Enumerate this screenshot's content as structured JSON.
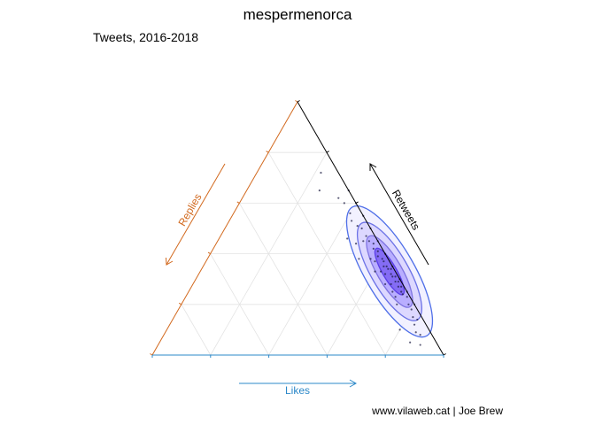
{
  "chart_data": {
    "type": "ternary-density",
    "title": "mespermenorca",
    "subtitle": "Tweets, 2016-2018",
    "caption": "www.vilaweb.cat | Joe Brew",
    "axes": {
      "likes": {
        "label": "Likes",
        "color": "#2b88c8"
      },
      "replies": {
        "label": "Replies",
        "color": "#d2691e"
      },
      "retweets": {
        "label": "Retweets",
        "color": "#000000"
      }
    },
    "grid": true,
    "grid_steps": 5,
    "composition_order": [
      "likes",
      "replies",
      "retweets"
    ],
    "density_center": [
      0.65,
      0.02,
      0.33
    ],
    "density_levels": [
      "outer",
      "middle",
      "inner",
      "core"
    ],
    "points": [
      [
        0.33,
        0.05,
        0.62
      ],
      [
        0.36,
        0.04,
        0.6
      ],
      [
        0.4,
        0.04,
        0.56
      ],
      [
        0.42,
        0.05,
        0.53
      ],
      [
        0.45,
        0.04,
        0.51
      ],
      [
        0.47,
        0.03,
        0.5
      ],
      [
        0.5,
        0.03,
        0.47
      ],
      [
        0.52,
        0.03,
        0.45
      ],
      [
        0.54,
        0.02,
        0.44
      ],
      [
        0.55,
        0.03,
        0.42
      ],
      [
        0.57,
        0.02,
        0.41
      ],
      [
        0.58,
        0.03,
        0.39
      ],
      [
        0.6,
        0.02,
        0.38
      ],
      [
        0.61,
        0.02,
        0.37
      ],
      [
        0.62,
        0.03,
        0.35
      ],
      [
        0.63,
        0.02,
        0.35
      ],
      [
        0.64,
        0.02,
        0.34
      ],
      [
        0.65,
        0.01,
        0.34
      ],
      [
        0.66,
        0.02,
        0.32
      ],
      [
        0.67,
        0.02,
        0.31
      ],
      [
        0.68,
        0.01,
        0.31
      ],
      [
        0.69,
        0.02,
        0.29
      ],
      [
        0.7,
        0.01,
        0.29
      ],
      [
        0.71,
        0.02,
        0.27
      ],
      [
        0.72,
        0.01,
        0.27
      ],
      [
        0.73,
        0.02,
        0.25
      ],
      [
        0.74,
        0.02,
        0.24
      ],
      [
        0.76,
        0.01,
        0.23
      ],
      [
        0.78,
        0.02,
        0.2
      ],
      [
        0.8,
        0.02,
        0.18
      ],
      [
        0.82,
        0.03,
        0.15
      ],
      [
        0.84,
        0.04,
        0.12
      ],
      [
        0.86,
        0.05,
        0.09
      ],
      [
        0.88,
        0.04,
        0.08
      ],
      [
        0.56,
        0.06,
        0.38
      ],
      [
        0.6,
        0.07,
        0.33
      ],
      [
        0.48,
        0.08,
        0.44
      ],
      [
        0.52,
        0.1,
        0.38
      ],
      [
        0.44,
        0.1,
        0.46
      ],
      [
        0.66,
        0.06,
        0.28
      ],
      [
        0.7,
        0.05,
        0.25
      ],
      [
        0.74,
        0.06,
        0.2
      ],
      [
        0.62,
        0.05,
        0.33
      ],
      [
        0.58,
        0.05,
        0.37
      ],
      [
        0.64,
        0.04,
        0.32
      ],
      [
        0.68,
        0.04,
        0.28
      ],
      [
        0.72,
        0.05,
        0.23
      ],
      [
        0.5,
        0.05,
        0.45
      ],
      [
        0.35,
        0.0,
        0.65
      ],
      [
        0.4,
        0.0,
        0.6
      ],
      [
        0.45,
        0.0,
        0.55
      ],
      [
        0.5,
        0.0,
        0.5
      ],
      [
        0.55,
        0.0,
        0.45
      ],
      [
        0.6,
        0.0,
        0.4
      ],
      [
        0.65,
        0.0,
        0.35
      ],
      [
        0.7,
        0.0,
        0.3
      ],
      [
        0.75,
        0.0,
        0.25
      ],
      [
        0.8,
        0.0,
        0.2
      ],
      [
        0.22,
        0.06,
        0.72
      ],
      [
        0.25,
        0.1,
        0.65
      ],
      [
        0.9,
        0.06,
        0.04
      ],
      [
        0.86,
        0.09,
        0.05
      ],
      [
        0.8,
        0.1,
        0.1
      ],
      [
        0.84,
        0.02,
        0.14
      ]
    ]
  }
}
